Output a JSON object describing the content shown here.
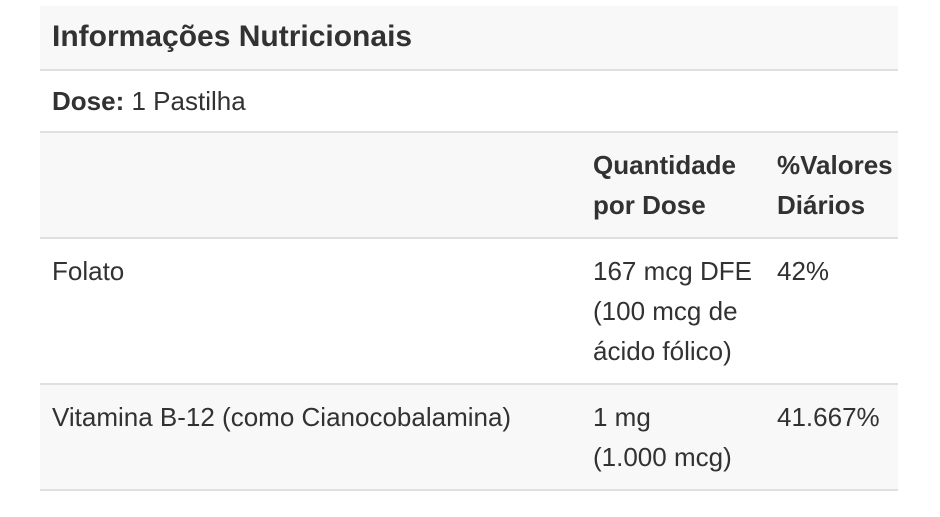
{
  "theme": {
    "text": "#323232",
    "row-bg": "#f8f8f8",
    "border": "#e0e0e0",
    "page-bg": "#ffffff"
  },
  "panel": {
    "title": "Informações Nutricionais",
    "dose": {
      "label": "Dose:",
      "value": "1 Pastilha"
    },
    "table": {
      "columns": [
        "",
        "Quantidade por Dose",
        "%Valores Diários"
      ],
      "rows": [
        {
          "name": "Folato",
          "amount": "167 mcg DFE",
          "amount_note": "(100 mcg de ácido fólico)",
          "daily_value": "42%"
        },
        {
          "name": "Vitamina B-12 (como Cianocobalamina)",
          "amount": "1 mg",
          "amount_note": "(1.000 mcg)",
          "daily_value": "41.667%"
        }
      ]
    }
  }
}
